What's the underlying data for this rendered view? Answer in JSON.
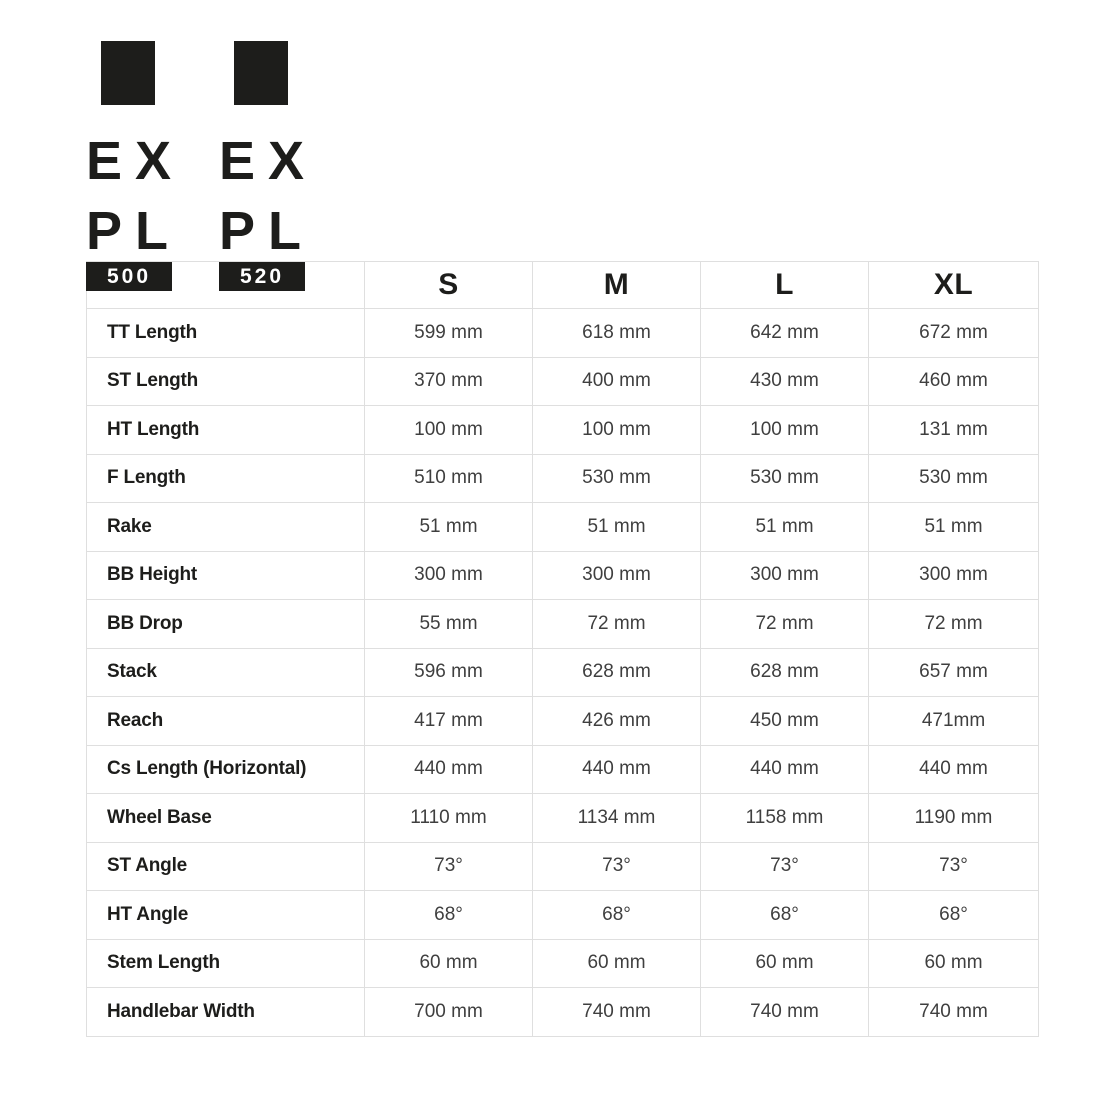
{
  "colors": {
    "brand_black": "#1d1d1b",
    "table_border": "#dfdfdf",
    "value_text": "#3f3f3f",
    "badge_text": "#ffffff",
    "page_background": "#ffffff"
  },
  "brand": {
    "logos": [
      {
        "id": "expl-500",
        "wordmark_line1": "EX",
        "wordmark_line2": "PL",
        "badge": "500"
      },
      {
        "id": "expl-520",
        "wordmark_line1": "EX",
        "wordmark_line2": "PL",
        "badge": "520"
      }
    ]
  },
  "chart_data": {
    "type": "table",
    "columns": [
      "",
      "S",
      "M",
      "L",
      "XL"
    ],
    "rows": [
      {
        "label": "TT Length",
        "values": [
          "599 mm",
          "618 mm",
          "642 mm",
          "672 mm"
        ]
      },
      {
        "label": "ST Length",
        "values": [
          "370 mm",
          "400 mm",
          "430 mm",
          "460 mm"
        ]
      },
      {
        "label": "HT Length",
        "values": [
          "100 mm",
          "100 mm",
          "100 mm",
          "131 mm"
        ]
      },
      {
        "label": "F Length",
        "values": [
          "510 mm",
          "530 mm",
          "530 mm",
          "530 mm"
        ]
      },
      {
        "label": "Rake",
        "values": [
          "51 mm",
          "51 mm",
          "51 mm",
          "51 mm"
        ]
      },
      {
        "label": "BB Height",
        "values": [
          "300 mm",
          "300 mm",
          "300 mm",
          "300 mm"
        ]
      },
      {
        "label": "BB Drop",
        "values": [
          "55 mm",
          "72 mm",
          "72 mm",
          "72 mm"
        ]
      },
      {
        "label": "Stack",
        "values": [
          "596 mm",
          "628 mm",
          "628 mm",
          "657 mm"
        ]
      },
      {
        "label": "Reach",
        "values": [
          "417 mm",
          "426 mm",
          "450 mm",
          "471mm"
        ]
      },
      {
        "label": "Cs Length (Horizontal)",
        "values": [
          "440 mm",
          "440 mm",
          "440 mm",
          "440 mm"
        ]
      },
      {
        "label": "Wheel Base",
        "values": [
          "1110 mm",
          "1134 mm",
          "1158 mm",
          "1190 mm"
        ]
      },
      {
        "label": "ST Angle",
        "values": [
          "73°",
          "73°",
          "73°",
          "73°"
        ]
      },
      {
        "label": "HT Angle",
        "values": [
          "68°",
          "68°",
          "68°",
          "68°"
        ]
      },
      {
        "label": "Stem Length",
        "values": [
          "60 mm",
          "60 mm",
          "60 mm",
          "60 mm"
        ]
      },
      {
        "label": "Handlebar Width",
        "values": [
          "700 mm",
          "740 mm",
          "740 mm",
          "740 mm"
        ]
      }
    ]
  }
}
